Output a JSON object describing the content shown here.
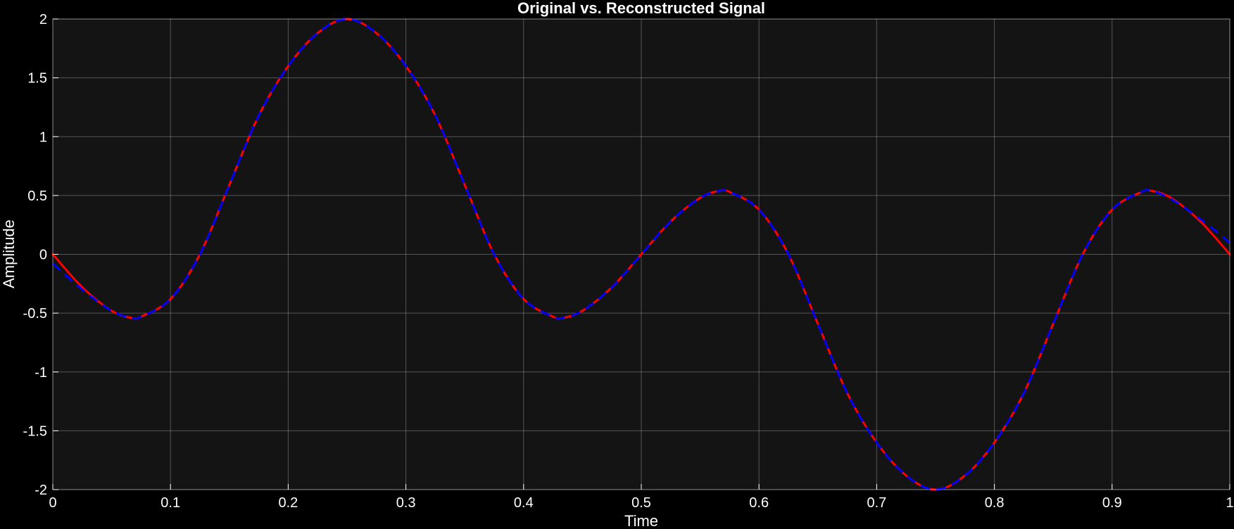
{
  "chart_data": {
    "type": "line",
    "title": "Original vs. Reconstructed Signal",
    "xlabel": "Time",
    "ylabel": "Amplitude",
    "xlim": [
      0,
      1
    ],
    "ylim": [
      -2,
      2
    ],
    "xticks": [
      "0",
      "0.1",
      "0.2",
      "0.3",
      "0.4",
      "0.5",
      "0.6",
      "0.7",
      "0.8",
      "0.9",
      "1"
    ],
    "yticks": [
      "2",
      "1.5",
      "1",
      "0.5",
      "0",
      "-0.5",
      "-1",
      "-1.5",
      "-2"
    ],
    "grid": true,
    "legend": "none",
    "background_color": "#000000",
    "axes_color": "#141414",
    "series": [
      {
        "color": "#ff0000",
        "style": "solid",
        "x": [
          0,
          0.025,
          0.05,
          0.0667,
          0.075,
          0.1,
          0.125,
          0.15,
          0.175,
          0.2,
          0.225,
          0.25,
          0.275,
          0.3,
          0.325,
          0.35,
          0.375,
          0.4,
          0.425,
          0.4333,
          0.45,
          0.475,
          0.5,
          0.525,
          0.55,
          0.5667,
          0.575,
          0.6,
          0.625,
          0.65,
          0.675,
          0.7,
          0.725,
          0.75,
          0.775,
          0.8,
          0.825,
          0.85,
          0.875,
          0.9,
          0.925,
          0.9333,
          0.95,
          0.975,
          1
        ],
        "y": [
          0,
          -0.28,
          -0.48,
          -0.54,
          -0.53,
          -0.38,
          0,
          0.59,
          1.18,
          1.6,
          1.88,
          2,
          1.88,
          1.6,
          1.18,
          0.59,
          0,
          -0.38,
          -0.53,
          -0.54,
          -0.48,
          -0.28,
          0,
          0.28,
          0.48,
          0.54,
          0.53,
          0.38,
          0,
          -0.59,
          -1.18,
          -1.6,
          -1.88,
          -2,
          -1.88,
          -1.6,
          -1.18,
          -0.59,
          0,
          0.38,
          0.53,
          0.54,
          0.48,
          0.28,
          0
        ]
      },
      {
        "color": "#0000ff",
        "style": "dashed",
        "x": [
          0,
          0.025,
          0.05,
          0.0667,
          0.075,
          0.1,
          0.125,
          0.15,
          0.175,
          0.2,
          0.225,
          0.25,
          0.275,
          0.3,
          0.325,
          0.35,
          0.375,
          0.4,
          0.425,
          0.4333,
          0.45,
          0.475,
          0.5,
          0.525,
          0.55,
          0.5667,
          0.575,
          0.6,
          0.625,
          0.65,
          0.675,
          0.7,
          0.725,
          0.75,
          0.775,
          0.8,
          0.825,
          0.85,
          0.875,
          0.9,
          0.925,
          0.9333,
          0.95,
          0.975,
          1
        ],
        "y": [
          -0.08,
          -0.3,
          -0.48,
          -0.54,
          -0.53,
          -0.38,
          0,
          0.59,
          1.18,
          1.6,
          1.88,
          2,
          1.88,
          1.6,
          1.18,
          0.59,
          0,
          -0.38,
          -0.53,
          -0.54,
          -0.48,
          -0.28,
          0,
          0.28,
          0.48,
          0.54,
          0.53,
          0.38,
          0,
          -0.59,
          -1.18,
          -1.6,
          -1.88,
          -2,
          -1.88,
          -1.6,
          -1.18,
          -0.59,
          0,
          0.38,
          0.53,
          0.54,
          0.47,
          0.3,
          0.1
        ]
      }
    ]
  }
}
